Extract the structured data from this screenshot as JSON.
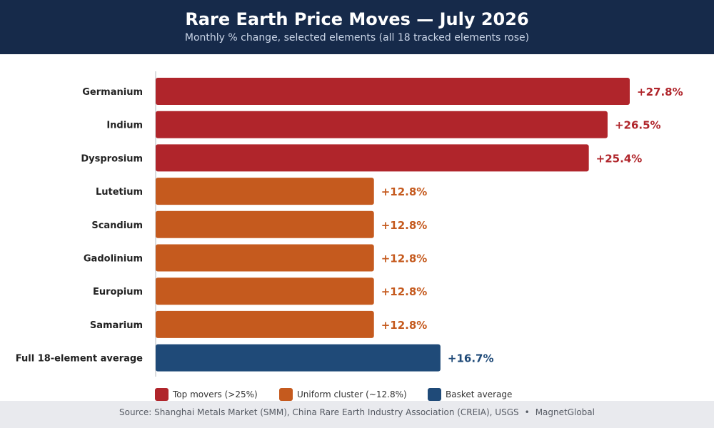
{
  "header": {
    "title": "Rare Earth Price Moves — July 2026",
    "subtitle": "Monthly % change, selected elements (all 18 tracked elements rose)"
  },
  "colors": {
    "top": "#b0252b",
    "cluster": "#c55a1e",
    "average": "#1f4a78",
    "header_bg": "#162a4a",
    "footer_bg": "#e9eaee"
  },
  "legend": [
    {
      "label": "Top movers (>25%)",
      "group": "top"
    },
    {
      "label": "Uniform cluster (~12.8%)",
      "group": "cluster"
    },
    {
      "label": "Basket average",
      "group": "average"
    }
  ],
  "footer": {
    "source": "Source: Shanghai Metals Market (SMM), China Rare Earth Industry Association (CREIA), USGS",
    "separator": "•",
    "brand": "MagnetGlobal"
  },
  "chart_data": {
    "type": "bar",
    "orientation": "horizontal",
    "categories": [
      "Germanium",
      "Indium",
      "Dysprosium",
      "Lutetium",
      "Scandium",
      "Gadolinium",
      "Europium",
      "Samarium",
      "Full 18-element average"
    ],
    "values": [
      27.8,
      26.5,
      25.4,
      12.8,
      12.8,
      12.8,
      12.8,
      12.8,
      16.7
    ],
    "value_labels": [
      "+27.8%",
      "+26.5%",
      "+25.4%",
      "+12.8%",
      "+12.8%",
      "+12.8%",
      "+12.8%",
      "+12.8%",
      "+16.7%"
    ],
    "groups": [
      "top",
      "top",
      "top",
      "cluster",
      "cluster",
      "cluster",
      "cluster",
      "cluster",
      "average"
    ],
    "unit": "%",
    "xlim": [
      0,
      27.8
    ],
    "grid": false,
    "legend_position": "bottom"
  }
}
